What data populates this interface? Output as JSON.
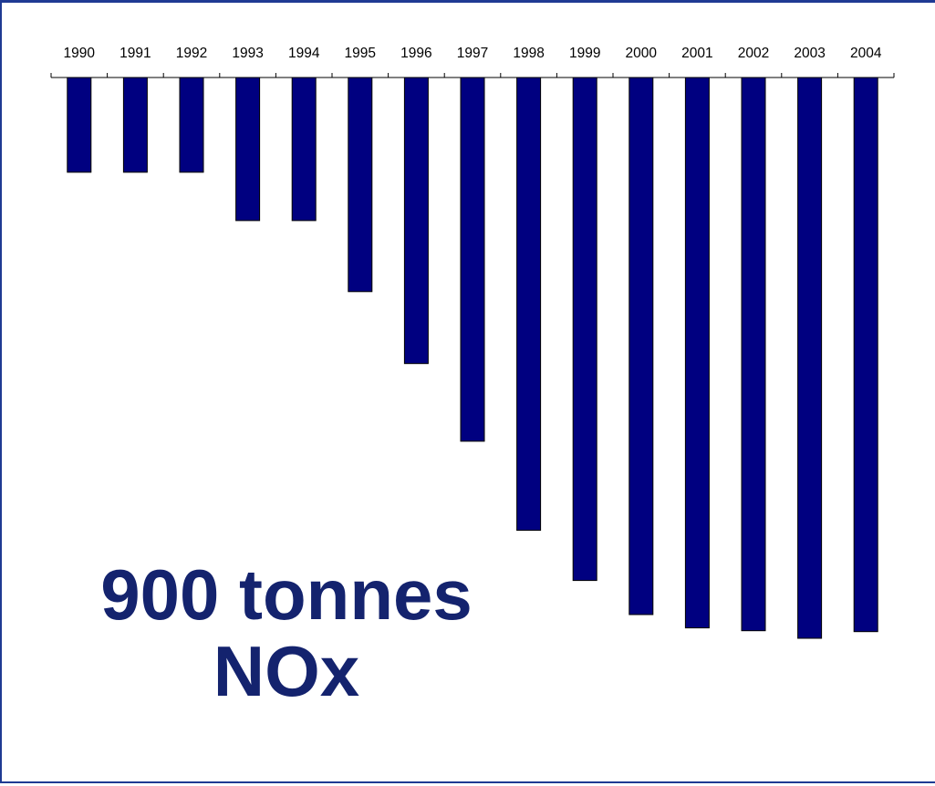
{
  "chart_data": {
    "type": "bar",
    "orientation": "vertical-downward",
    "categories": [
      "1990",
      "1991",
      "1992",
      "1993",
      "1994",
      "1995",
      "1996",
      "1997",
      "1998",
      "1999",
      "2000",
      "2001",
      "2002",
      "2003",
      "2004"
    ],
    "series": [
      {
        "values": [
          100,
          100,
          100,
          151,
          151,
          226,
          302,
          384,
          478,
          531,
          567,
          581,
          584,
          592,
          585
        ]
      }
    ],
    "value_axis": {
      "shown": false,
      "min": 0,
      "max": 592
    },
    "category_axis_position": "top",
    "grid": false,
    "legend": "none",
    "annotation_lines": [
      "900 tonnes",
      "NOx"
    ],
    "colors": {
      "bar": "#000080",
      "annotation": "#14236e",
      "frame": "#1f3a93"
    }
  }
}
